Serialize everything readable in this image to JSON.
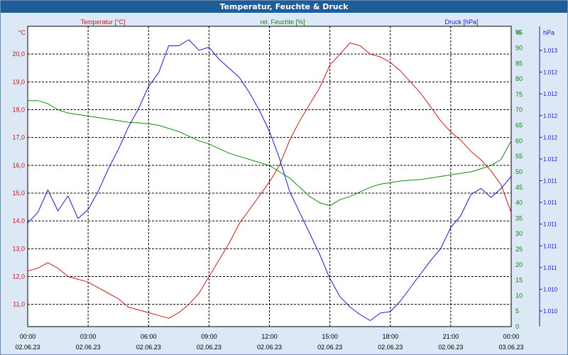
{
  "window": {
    "title": "Temperatur, Feuchte & Druck"
  },
  "colors": {
    "temperature": "#c21a1a",
    "humidity": "#118811",
    "pressure": "#1a1acc",
    "plot_bg": "#ffffff",
    "frame_bg": "#dce8f5"
  },
  "chart_data": {
    "type": "line",
    "title": "Temperatur, Feuchte & Druck",
    "grid": true,
    "x_categories": [
      {
        "time": "00:00",
        "date": "02.06.23"
      },
      {
        "time": "03:00",
        "date": "02.06.23"
      },
      {
        "time": "06:00",
        "date": "02.06.23"
      },
      {
        "time": "09:00",
        "date": "02.06.23"
      },
      {
        "time": "12:00",
        "date": "02.06.23"
      },
      {
        "time": "15:00",
        "date": "02.06.23"
      },
      {
        "time": "18:00",
        "date": "02.06.23"
      },
      {
        "time": "21:00",
        "date": "02.06.23"
      },
      {
        "time": "00:00",
        "date": "03.06.23"
      }
    ],
    "x_range_hours": [
      0,
      24
    ],
    "axes": {
      "left": {
        "label": "Temperatur [°C]",
        "unit": "°C",
        "range": [
          10.2,
          21.0
        ],
        "ticks": [
          "20,0",
          "19,0",
          "18,0",
          "17,0",
          "16,0",
          "15,0",
          "14,0",
          "13,0",
          "12,0",
          "11,0"
        ],
        "tick_values": [
          20,
          19,
          18,
          17,
          16,
          15,
          14,
          13,
          12,
          11
        ]
      },
      "middle": {
        "label": "rel. Feuchte [%]",
        "unit": "%",
        "range": [
          0,
          97
        ],
        "ticks": [
          "95",
          "90",
          "85",
          "80",
          "75",
          "70",
          "65",
          "60",
          "55",
          "50",
          "45",
          "40",
          "35",
          "30",
          "25",
          "20",
          "15",
          "10",
          "5",
          "0"
        ],
        "tick_values": [
          95,
          90,
          85,
          80,
          75,
          70,
          65,
          60,
          55,
          50,
          45,
          40,
          35,
          30,
          25,
          20,
          15,
          10,
          5,
          0
        ]
      },
      "right": {
        "label": "Druck [hPa]",
        "unit": "hPa",
        "ticks": [
          "1.013",
          "1.012",
          "1.012",
          "1.012",
          "1.012",
          "1.012",
          "1.011",
          "1.011",
          "1.011",
          "1.011",
          "1.011",
          "1.010",
          "1.010"
        ]
      }
    },
    "series": [
      {
        "name": "Temperatur [°C]",
        "axis": "left",
        "x": [
          0,
          0.5,
          1,
          1.5,
          2,
          2.5,
          3,
          3.5,
          4,
          4.5,
          5,
          5.5,
          6,
          6.5,
          7,
          7.5,
          8,
          8.5,
          9,
          9.5,
          10,
          10.5,
          11,
          11.5,
          12,
          12.5,
          13,
          13.5,
          14,
          14.5,
          15,
          15.5,
          16,
          16.5,
          17,
          17.5,
          18,
          18.5,
          19,
          19.5,
          20,
          20.5,
          21,
          21.5,
          22,
          22.5,
          23,
          23.5,
          24
        ],
        "values": [
          12.2,
          12.3,
          12.5,
          12.3,
          12.0,
          11.9,
          11.8,
          11.6,
          11.4,
          11.2,
          10.9,
          10.8,
          10.7,
          10.6,
          10.5,
          10.7,
          11.0,
          11.4,
          12.0,
          12.6,
          13.2,
          13.9,
          14.4,
          14.9,
          15.4,
          16.0,
          16.9,
          17.6,
          18.2,
          18.8,
          19.6,
          20.0,
          20.4,
          20.3,
          20.0,
          19.9,
          19.7,
          19.4,
          19.0,
          18.6,
          18.1,
          17.6,
          17.2,
          16.9,
          16.5,
          16.2,
          15.8,
          15.3,
          14.3
        ]
      },
      {
        "name": "rel. Feuchte [%]",
        "axis": "middle",
        "x": [
          0,
          0.5,
          1,
          1.5,
          2,
          2.5,
          3,
          3.5,
          4,
          4.5,
          5,
          5.5,
          6,
          6.5,
          7,
          7.5,
          8,
          8.5,
          9,
          9.5,
          10,
          10.5,
          11,
          11.5,
          12,
          12.5,
          13,
          13.5,
          14,
          14.5,
          15,
          15.5,
          16,
          16.5,
          17,
          17.5,
          18,
          18.5,
          19,
          19.5,
          20,
          20.5,
          21,
          21.5,
          22,
          22.5,
          23,
          23.5,
          24
        ],
        "values": [
          73,
          73,
          72,
          70,
          69,
          68.5,
          68,
          67.5,
          67,
          66.5,
          66,
          65.8,
          65.5,
          65,
          64,
          63,
          61.5,
          60,
          59,
          57.5,
          56,
          55,
          54,
          53,
          52,
          50,
          48,
          45,
          42,
          40,
          39,
          41,
          42,
          43.5,
          45,
          46,
          46.5,
          47,
          47.3,
          47.5,
          48,
          48.5,
          49,
          49.5,
          50,
          51,
          52,
          54,
          60
        ]
      },
      {
        "name": "Druck [hPa]",
        "axis": "right",
        "x": [
          0,
          0.5,
          1,
          1.5,
          2,
          2.5,
          3,
          3.5,
          4,
          4.5,
          5,
          5.5,
          6,
          6.5,
          7,
          7.5,
          8,
          8.5,
          9,
          9.5,
          10,
          10.5,
          11,
          11.5,
          12,
          12.5,
          13,
          13.5,
          14,
          14.5,
          15,
          15.5,
          16,
          16.5,
          17,
          17.5,
          18,
          18.5,
          19,
          19.5,
          20,
          20.5,
          21,
          21.5,
          22,
          22.5,
          23,
          23.5,
          24
        ],
        "values": [
          0.345,
          0.38,
          0.455,
          0.385,
          0.435,
          0.36,
          0.39,
          0.45,
          0.525,
          0.59,
          0.665,
          0.725,
          0.8,
          0.845,
          0.935,
          0.935,
          0.955,
          0.92,
          0.93,
          0.89,
          0.86,
          0.83,
          0.78,
          0.72,
          0.65,
          0.56,
          0.45,
          0.38,
          0.31,
          0.24,
          0.16,
          0.1,
          0.065,
          0.04,
          0.02,
          0.045,
          0.05,
          0.085,
          0.13,
          0.175,
          0.22,
          0.26,
          0.33,
          0.37,
          0.44,
          0.46,
          0.43,
          0.46,
          0.5
        ]
      }
    ]
  }
}
